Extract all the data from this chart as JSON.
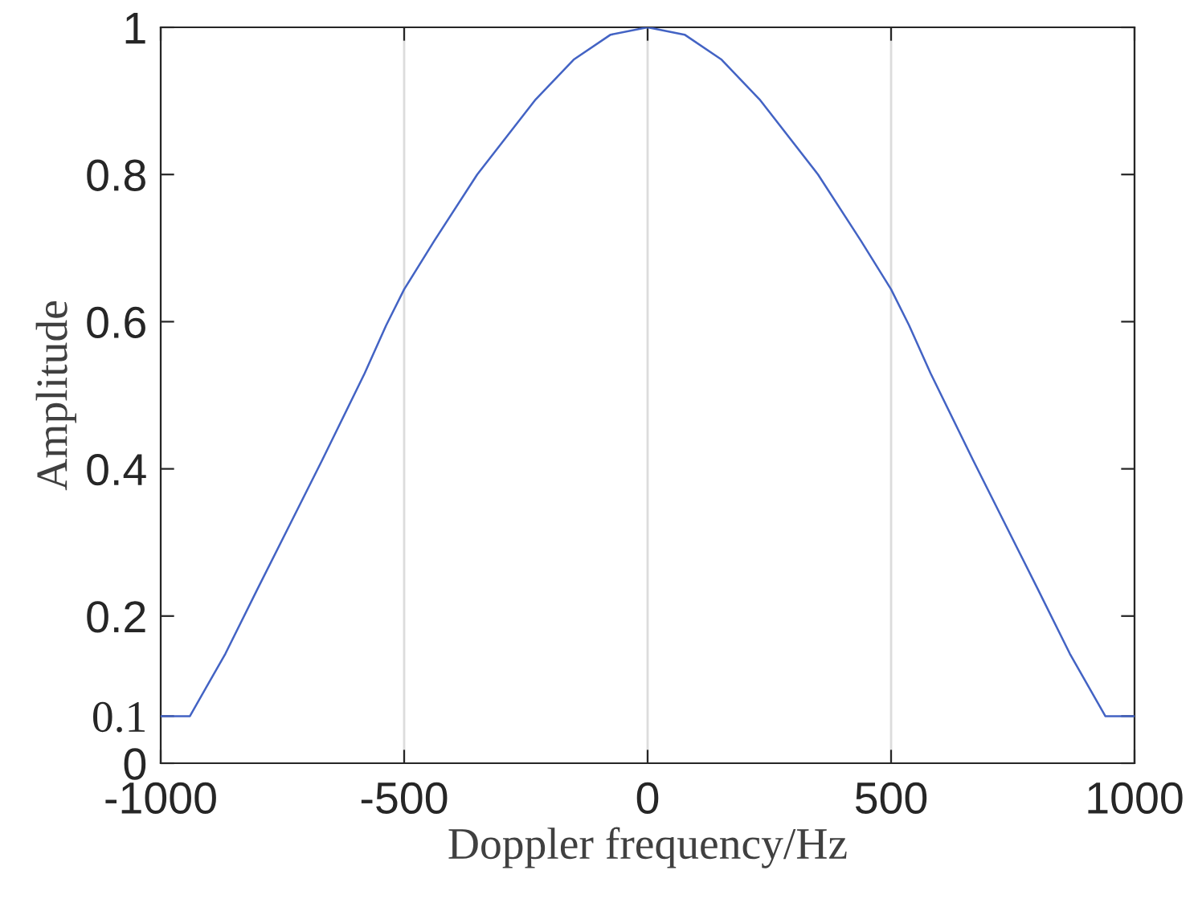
{
  "chart_data": {
    "type": "line",
    "xlabel": "Doppler frequency/Hz",
    "ylabel": "Amplitude",
    "x": [
      -1000,
      -940,
      -867,
      -801,
      -735,
      -669,
      -581,
      -537,
      -500,
      -438,
      -350,
      -230,
      -152,
      -76,
      0,
      76,
      152,
      230,
      350,
      438,
      500,
      537,
      581,
      669,
      735,
      801,
      867,
      940,
      1000
    ],
    "series": [
      {
        "color": "#4363c4",
        "values": [
          0.064,
          0.064,
          0.149,
          0.237,
          0.324,
          0.411,
          0.53,
          0.595,
          0.644,
          0.71,
          0.8,
          0.902,
          0.956,
          0.99,
          1.0,
          0.99,
          0.956,
          0.902,
          0.8,
          0.71,
          0.644,
          0.595,
          0.53,
          0.411,
          0.324,
          0.237,
          0.149,
          0.064,
          0.064
        ]
      }
    ],
    "xlim": [
      -1000,
      1000
    ],
    "xticks": [
      -1000,
      -500,
      0,
      500,
      1000
    ],
    "ylim": [
      0,
      1
    ],
    "yticks": [
      0,
      {
        "value": 0.064,
        "label": "0.1"
      },
      0.2,
      0.4,
      0.6,
      0.8,
      1
    ],
    "grid": "x",
    "legend": false,
    "marker": "none",
    "line_style": "solid"
  }
}
